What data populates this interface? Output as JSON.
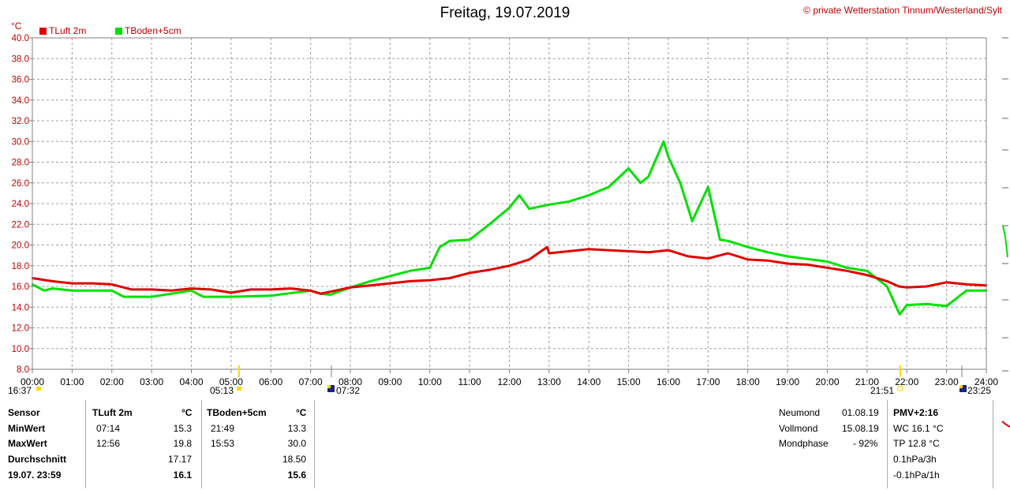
{
  "header": {
    "title": "Freitag, 19.07.2019",
    "credit": "© private Wetterstation Tinnum/Westerland/Sylt",
    "unit": "°C"
  },
  "legend": [
    {
      "label": "TLuft 2m",
      "color": "#e00000"
    },
    {
      "label": "TBoden+5cm",
      "color": "#00e000"
    }
  ],
  "events": {
    "bottom_left": [
      "16:37",
      "05:13",
      "07:32"
    ],
    "bottom_right": [
      "21:51",
      "23:25"
    ]
  },
  "chart_data": {
    "type": "line",
    "title": "Freitag, 19.07.2019",
    "ylabel": "°C",
    "ylim": [
      8.0,
      40.0
    ],
    "yticks": [
      "40.0",
      "38.0",
      "36.0",
      "34.0",
      "32.0",
      "30.0",
      "28.0",
      "26.0",
      "24.0",
      "22.0",
      "20.0",
      "18.0",
      "16.0",
      "14.0",
      "12.0",
      "10.0",
      "8.0"
    ],
    "xlim": [
      0,
      24
    ],
    "xticks": [
      "00:00",
      "01:00",
      "02:00",
      "03:00",
      "04:00",
      "05:00",
      "06:00",
      "07:00",
      "08:00",
      "09:00",
      "10:00",
      "11:00",
      "12:00",
      "13:00",
      "14:00",
      "15:00",
      "16:00",
      "17:00",
      "18:00",
      "19:00",
      "20:00",
      "21:00",
      "22:00",
      "23:00",
      "24:00"
    ],
    "grid": true,
    "legend_position": "top-left",
    "series": [
      {
        "name": "TLuft 2m",
        "color": "#e00000",
        "x": [
          0,
          0.5,
          1,
          1.5,
          2,
          2.5,
          3,
          3.5,
          4,
          4.5,
          5,
          5.5,
          6,
          6.5,
          7,
          7.25,
          7.5,
          8,
          8.5,
          9,
          9.5,
          10,
          10.5,
          11,
          11.5,
          12,
          12.5,
          12.95,
          13,
          13.5,
          14,
          14.5,
          15,
          15.5,
          16,
          16.5,
          17,
          17.5,
          18,
          18.5,
          19,
          19.5,
          20,
          20.5,
          21,
          21.5,
          21.8,
          22,
          22.5,
          23,
          23.5,
          24
        ],
        "y": [
          16.8,
          16.5,
          16.3,
          16.3,
          16.2,
          15.7,
          15.7,
          15.6,
          15.8,
          15.7,
          15.4,
          15.7,
          15.7,
          15.8,
          15.6,
          15.3,
          15.5,
          15.9,
          16.1,
          16.3,
          16.5,
          16.6,
          16.8,
          17.3,
          17.6,
          18.0,
          18.6,
          19.8,
          19.2,
          19.4,
          19.6,
          19.5,
          19.4,
          19.3,
          19.5,
          18.9,
          18.7,
          19.2,
          18.6,
          18.5,
          18.2,
          18.1,
          17.8,
          17.5,
          17.1,
          16.5,
          16.0,
          15.9,
          16.0,
          16.4,
          16.2,
          16.1
        ]
      },
      {
        "name": "TBoden+5cm",
        "color": "#00e000",
        "x": [
          0,
          0.3,
          0.5,
          1,
          2,
          2.3,
          2.5,
          3,
          3.5,
          4,
          4.3,
          5,
          6,
          7,
          7.25,
          7.5,
          8,
          8.5,
          9,
          9.5,
          10,
          10.25,
          10.5,
          11,
          11.5,
          12,
          12.25,
          12.5,
          13,
          13.5,
          14,
          14.5,
          15,
          15.3,
          15.5,
          15.88,
          16,
          16.3,
          16.6,
          17,
          17.3,
          17.5,
          18,
          18.5,
          19,
          20,
          20.5,
          21,
          21.5,
          21.82,
          22,
          22.5,
          23,
          23.5,
          24
        ],
        "y": [
          16.2,
          15.6,
          15.8,
          15.6,
          15.6,
          15.0,
          15.0,
          15.0,
          15.3,
          15.6,
          15.0,
          15.0,
          15.1,
          15.6,
          15.3,
          15.2,
          15.9,
          16.5,
          17.0,
          17.5,
          17.8,
          19.8,
          20.4,
          20.5,
          22.0,
          23.6,
          24.8,
          23.5,
          23.9,
          24.2,
          24.8,
          25.6,
          27.4,
          26.0,
          26.6,
          30.0,
          28.5,
          26.0,
          22.3,
          25.6,
          20.5,
          20.4,
          19.8,
          19.3,
          18.9,
          18.4,
          17.8,
          17.5,
          16.0,
          13.3,
          14.2,
          14.3,
          14.1,
          15.6,
          15.6
        ]
      }
    ]
  },
  "stats": {
    "headers": {
      "sensor": "Sensor",
      "col1": "TLuft 2m",
      "col1_unit": "°C",
      "col2": "TBoden+5cm",
      "col2_unit": "°C"
    },
    "rows": [
      {
        "label": "MinWert",
        "t1": "07:14",
        "v1": "15.3",
        "t2": "21:49",
        "v2": "13.3"
      },
      {
        "label": "MaxWert",
        "t1": "12:56",
        "v1": "19.8",
        "t2": "15:53",
        "v2": "30.0"
      },
      {
        "label": "Durchschnitt",
        "t1": "",
        "v1": "17.17",
        "t2": "",
        "v2": "18.50"
      },
      {
        "label": "19.07. 23:59",
        "t1": "",
        "v1": "16.1",
        "t2": "",
        "v2": "15.6"
      }
    ]
  },
  "moon": {
    "rows": [
      {
        "label": "Neumond",
        "value": "01.08.19"
      },
      {
        "label": "Vollmond",
        "value": "15.08.19"
      },
      {
        "label": "Mondphase",
        "value": "- 92%"
      }
    ]
  },
  "pmv": {
    "title": "PMV+2:16",
    "lines": [
      "WC 16.1 °C",
      "TP 12.8 °C",
      "0.1hPa/3h",
      "-0.1hPa/1h"
    ]
  }
}
